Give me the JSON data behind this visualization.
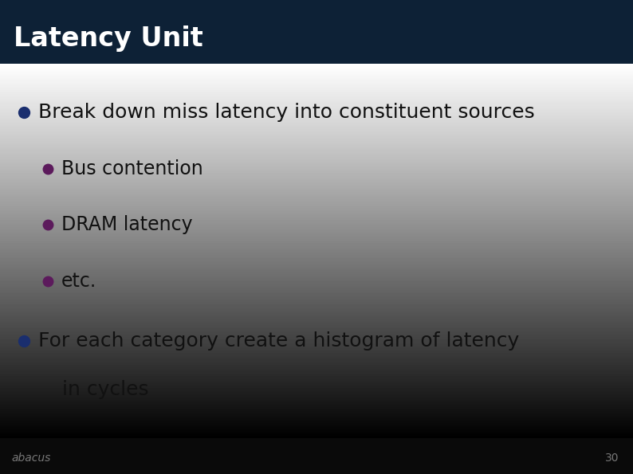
{
  "title": "Latency Unit",
  "title_color": "#ffffff",
  "title_bg_color": "#0d2136",
  "title_fontsize": 24,
  "body_bg_color": "#ececec",
  "footer_bg_color": "#0a0a0a",
  "footer_text": "abacus",
  "footer_number": "30",
  "footer_color": "#777777",
  "bullet_color_level1": "#1a2e6e",
  "bullet_color_level2": "#5c1a5c",
  "bullet1_text": "Break down miss latency into constituent sources",
  "bullet2_text": "Bus contention",
  "bullet3_text": "DRAM latency",
  "bullet4_text": "etc.",
  "bullet5_line1": "For each category create a histogram of latency",
  "bullet5_line2": "in cycles",
  "text_color": "#111111",
  "fontsize_level1": 18,
  "fontsize_level2": 17
}
